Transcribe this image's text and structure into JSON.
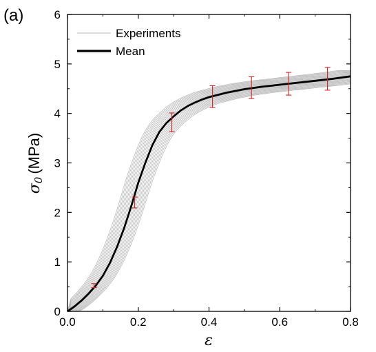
{
  "panel_label": "(a)",
  "chart_data": {
    "type": "line",
    "title": "",
    "xlabel": "ε",
    "ylabel_symbol": "σ",
    "ylabel_subscript": "0",
    "ylabel_unit": "(MPa)",
    "xlim": [
      0,
      0.8
    ],
    "ylim": [
      0,
      6
    ],
    "x_ticks": [
      "0.0",
      "0.2",
      "0.4",
      "0.6",
      "0.8"
    ],
    "y_ticks": [
      "0",
      "1",
      "2",
      "3",
      "4",
      "5",
      "6"
    ],
    "grid": false,
    "legend_position": "top-left",
    "legend": [
      {
        "label": "Experiments",
        "color": "#b8b8b8"
      },
      {
        "label": "Mean",
        "color": "#000000"
      }
    ],
    "series": [
      {
        "name": "Mean",
        "color": "#000000",
        "x": [
          0,
          0.02,
          0.04,
          0.06,
          0.08,
          0.1,
          0.12,
          0.14,
          0.16,
          0.18,
          0.2,
          0.22,
          0.24,
          0.26,
          0.28,
          0.3,
          0.32,
          0.34,
          0.36,
          0.38,
          0.4,
          0.45,
          0.5,
          0.55,
          0.6,
          0.65,
          0.7,
          0.75,
          0.8
        ],
        "y": [
          0,
          0.1,
          0.22,
          0.36,
          0.52,
          0.72,
          0.98,
          1.3,
          1.68,
          2.12,
          2.6,
          3.0,
          3.36,
          3.63,
          3.81,
          3.94,
          4.06,
          4.15,
          4.22,
          4.28,
          4.33,
          4.42,
          4.49,
          4.54,
          4.58,
          4.62,
          4.66,
          4.7,
          4.75
        ]
      }
    ],
    "experiments": {
      "name": "Experiments",
      "count": 20,
      "color": "#b8b8b8"
    },
    "error_bars": {
      "color": "#d42020",
      "points": [
        {
          "x": 0.075,
          "y": 0.52,
          "err": 0.04
        },
        {
          "x": 0.19,
          "y": 2.2,
          "err": 0.11
        },
        {
          "x": 0.295,
          "y": 3.82,
          "err": 0.19
        },
        {
          "x": 0.41,
          "y": 4.34,
          "err": 0.22
        },
        {
          "x": 0.52,
          "y": 4.52,
          "err": 0.22
        },
        {
          "x": 0.625,
          "y": 4.6,
          "err": 0.23
        },
        {
          "x": 0.735,
          "y": 4.7,
          "err": 0.23
        }
      ]
    }
  }
}
